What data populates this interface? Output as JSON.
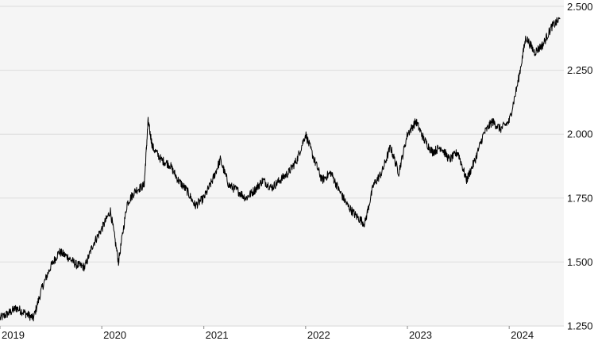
{
  "chart_data": {
    "type": "line",
    "title": "",
    "xlabel": "",
    "ylabel": "",
    "x_tick_labels": [
      "2019",
      "2020",
      "2021",
      "2022",
      "2023",
      "2024"
    ],
    "y_tick_labels": [
      "2.500",
      "2.250",
      "2.000",
      "1.750",
      "1.500",
      "1.250"
    ],
    "y_ticks": [
      2.5,
      2.25,
      2.0,
      1.75,
      1.5,
      1.25
    ],
    "ylim": [
      1.25,
      2.5
    ],
    "xlim": [
      "2019-01-01",
      "2024-07-15"
    ],
    "grid": "horizontal",
    "legend": "none",
    "colors": {
      "line": "#000000",
      "background": "#f5f5f5",
      "grid": "#dcdcdc",
      "text": "#111111"
    },
    "series": [
      {
        "values_note_excluded": true,
        "x": [
          "2019-01-01",
          "2019-02-01",
          "2019-03-01",
          "2019-04-01",
          "2019-05-01",
          "2019-06-01",
          "2019-07-01",
          "2019-08-01",
          "2019-09-01",
          "2019-10-01",
          "2019-11-01",
          "2019-12-01",
          "2020-01-01",
          "2020-02-01",
          "2020-03-01",
          "2020-04-01",
          "2020-05-01",
          "2020-06-01",
          "2020-06-15",
          "2020-07-01",
          "2020-08-01",
          "2020-09-01",
          "2020-10-01",
          "2020-11-01",
          "2020-12-01",
          "2021-01-01",
          "2021-02-01",
          "2021-03-01",
          "2021-04-01",
          "2021-05-01",
          "2021-06-01",
          "2021-07-01",
          "2021-08-01",
          "2021-09-01",
          "2021-10-01",
          "2021-11-01",
          "2021-12-01",
          "2022-01-01",
          "2022-02-01",
          "2022-03-01",
          "2022-04-01",
          "2022-05-01",
          "2022-06-01",
          "2022-07-01",
          "2022-08-01",
          "2022-09-01",
          "2022-10-01",
          "2022-11-01",
          "2022-12-01",
          "2023-01-01",
          "2023-02-01",
          "2023-03-01",
          "2023-04-01",
          "2023-05-01",
          "2023-06-01",
          "2023-07-01",
          "2023-08-01",
          "2023-09-01",
          "2023-10-01",
          "2023-11-01",
          "2023-12-01",
          "2024-01-01",
          "2024-02-01",
          "2024-03-01",
          "2024-04-01",
          "2024-05-01",
          "2024-06-01",
          "2024-07-01"
        ],
        "values": [
          1.28,
          1.3,
          1.32,
          1.3,
          1.28,
          1.4,
          1.48,
          1.54,
          1.52,
          1.49,
          1.48,
          1.57,
          1.63,
          1.7,
          1.5,
          1.73,
          1.78,
          1.8,
          2.05,
          1.95,
          1.9,
          1.88,
          1.82,
          1.78,
          1.72,
          1.75,
          1.82,
          1.9,
          1.8,
          1.78,
          1.75,
          1.78,
          1.82,
          1.79,
          1.82,
          1.85,
          1.9,
          2.0,
          1.9,
          1.82,
          1.85,
          1.78,
          1.72,
          1.68,
          1.65,
          1.8,
          1.85,
          1.95,
          1.85,
          2.0,
          2.05,
          1.98,
          1.93,
          1.95,
          1.9,
          1.93,
          1.82,
          1.9,
          2.0,
          2.05,
          2.02,
          2.05,
          2.2,
          2.38,
          2.32,
          2.35,
          2.42,
          2.45
        ]
      }
    ]
  }
}
